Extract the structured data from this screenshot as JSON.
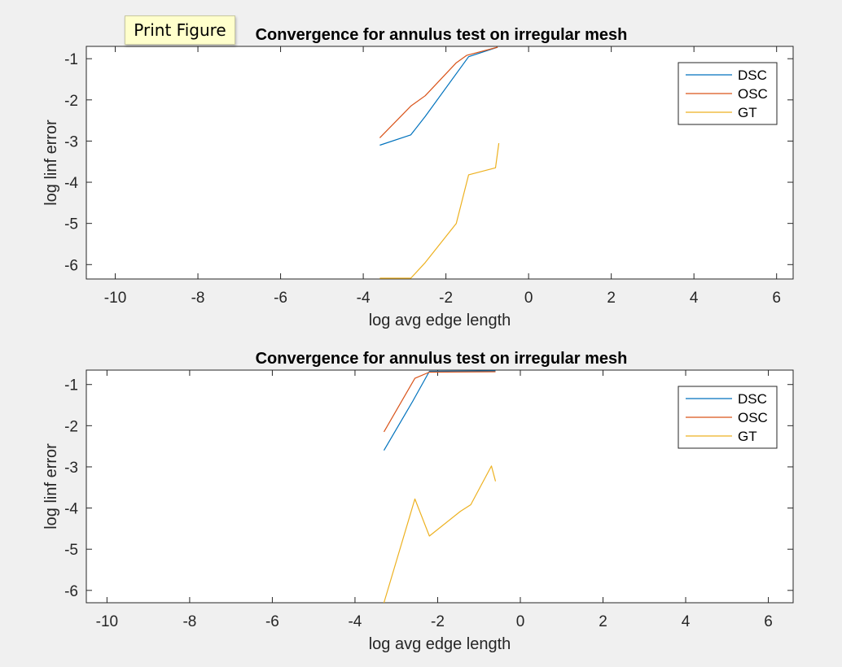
{
  "tooltip": {
    "label": "Print Figure"
  },
  "colors": {
    "DSC": "#0072bd",
    "OSC": "#d95319",
    "GT": "#edb120",
    "axes_bg": "#ffffff",
    "figure_bg": "#f0f0f0"
  },
  "chart_data": [
    {
      "type": "line",
      "title": "Convergence for annulus test on irregular mesh",
      "xlabel": "log avg edge length",
      "ylabel": "log linf error",
      "xlim": [
        -10.7,
        6.4
      ],
      "ylim": [
        -6.35,
        -0.7
      ],
      "xticks": [
        -10,
        -8,
        -6,
        -4,
        -2,
        0,
        2,
        4,
        6
      ],
      "yticks": [
        -6,
        -5,
        -4,
        -3,
        -2,
        -1
      ],
      "grid": false,
      "legend": "top-right",
      "series": [
        {
          "name": "DSC",
          "x": [
            -3.6,
            -2.85,
            -2.5,
            -1.45,
            -0.75
          ],
          "y": [
            -3.1,
            -2.85,
            -2.4,
            -0.95,
            -0.72
          ]
        },
        {
          "name": "OSC",
          "x": [
            -3.6,
            -2.85,
            -2.5,
            -1.75,
            -1.5,
            -0.75
          ],
          "y": [
            -2.92,
            -2.15,
            -1.9,
            -1.1,
            -0.92,
            -0.72
          ]
        },
        {
          "name": "GT",
          "x": [
            -3.6,
            -2.85,
            -2.5,
            -1.75,
            -1.45,
            -0.8,
            -0.72
          ],
          "y": [
            -6.33,
            -6.33,
            -5.95,
            -5.0,
            -3.82,
            -3.65,
            -3.05
          ]
        }
      ]
    },
    {
      "type": "line",
      "title": "Convergence for annulus test on irregular mesh",
      "xlabel": "log avg edge length",
      "ylabel": "log linf error",
      "xlim": [
        -10.5,
        6.6
      ],
      "ylim": [
        -6.3,
        -0.65
      ],
      "xticks": [
        -10,
        -8,
        -6,
        -4,
        -2,
        0,
        2,
        4,
        6
      ],
      "yticks": [
        -6,
        -5,
        -4,
        -3,
        -2,
        -1
      ],
      "grid": false,
      "legend": "top-right",
      "series": [
        {
          "name": "DSC",
          "x": [
            -3.3,
            -2.6,
            -2.2,
            -0.6
          ],
          "y": [
            -2.6,
            -1.4,
            -0.68,
            -0.67
          ]
        },
        {
          "name": "OSC",
          "x": [
            -3.3,
            -2.55,
            -2.2,
            -0.6
          ],
          "y": [
            -2.15,
            -0.85,
            -0.7,
            -0.69
          ]
        },
        {
          "name": "GT",
          "x": [
            -3.3,
            -2.55,
            -2.2,
            -1.45,
            -1.2,
            -0.7,
            -0.6
          ],
          "y": [
            -6.3,
            -3.78,
            -4.68,
            -4.08,
            -3.92,
            -2.98,
            -3.35
          ]
        }
      ]
    }
  ]
}
